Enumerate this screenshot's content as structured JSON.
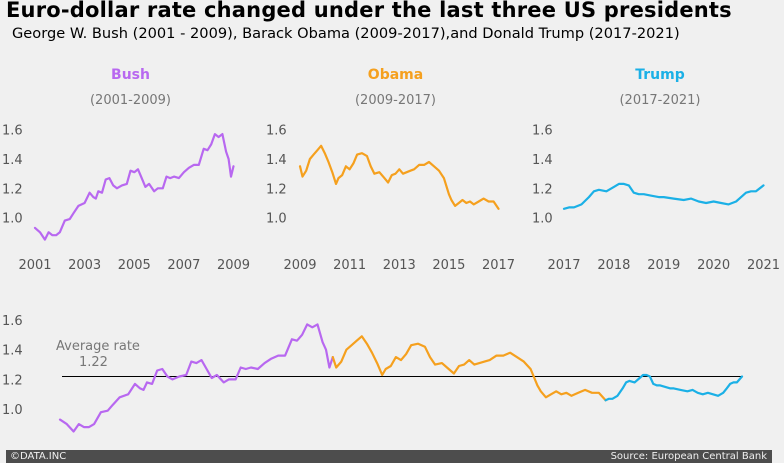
{
  "header": {
    "title": "Euro-dollar rate changed under the last three US presidents",
    "subtitle": "George W. Bush (2001 - 2009), Barack Obama (2009-2017),and Donald Trump (2017-2021)"
  },
  "footer": {
    "left": "©DATA.INC",
    "right": "Source: European Central Bank"
  },
  "chart_data": [
    {
      "type": "line",
      "title": "Bush",
      "subtitle": "(2001-2009)",
      "color": "#b868f0",
      "xlim": [
        2001,
        2009.1
      ],
      "ylim": [
        0.82,
        1.68
      ],
      "xticks": [
        "2001",
        "2003",
        "2005",
        "2007",
        "2009"
      ],
      "yticks": [
        "1.0",
        "1.2",
        "1.4",
        "1.6"
      ],
      "series": [
        {
          "x": [
            2001.0,
            2001.2,
            2001.4,
            2001.55,
            2001.7,
            2001.85,
            2002.0,
            2002.2,
            2002.4,
            2002.55,
            2002.75,
            2003.0,
            2003.2,
            2003.35,
            2003.45,
            2003.55,
            2003.7,
            2003.85,
            2004.0,
            2004.15,
            2004.3,
            2004.5,
            2004.7,
            2004.85,
            2005.0,
            2005.15,
            2005.3,
            2005.45,
            2005.6,
            2005.8,
            2005.95,
            2006.15,
            2006.3,
            2006.45,
            2006.6,
            2006.8,
            2007.0,
            2007.2,
            2007.4,
            2007.6,
            2007.8,
            2007.95,
            2008.1,
            2008.25,
            2008.4,
            2008.55,
            2008.7,
            2008.8,
            2008.9,
            2009.0
          ],
          "y": [
            0.93,
            0.9,
            0.85,
            0.9,
            0.88,
            0.88,
            0.9,
            0.98,
            0.99,
            1.03,
            1.08,
            1.1,
            1.17,
            1.14,
            1.13,
            1.18,
            1.17,
            1.26,
            1.27,
            1.22,
            1.2,
            1.22,
            1.23,
            1.32,
            1.31,
            1.33,
            1.27,
            1.21,
            1.23,
            1.18,
            1.2,
            1.2,
            1.28,
            1.27,
            1.28,
            1.27,
            1.31,
            1.34,
            1.36,
            1.36,
            1.47,
            1.46,
            1.5,
            1.57,
            1.55,
            1.57,
            1.45,
            1.4,
            1.28,
            1.35
          ]
        }
      ]
    },
    {
      "type": "line",
      "title": "Obama",
      "subtitle": "(2009-2017)",
      "color": "#f5a01e",
      "xlim": [
        2009,
        2017.1
      ],
      "ylim": [
        0.82,
        1.68
      ],
      "xticks": [
        "2009",
        "2011",
        "2013",
        "2015",
        "2017"
      ],
      "yticks": [
        "1.0",
        "1.2",
        "1.4",
        "1.6"
      ],
      "series": [
        {
          "x": [
            2009.0,
            2009.1,
            2009.25,
            2009.4,
            2009.55,
            2009.7,
            2009.85,
            2010.0,
            2010.15,
            2010.3,
            2010.45,
            2010.55,
            2010.7,
            2010.85,
            2011.0,
            2011.15,
            2011.3,
            2011.5,
            2011.7,
            2011.85,
            2012.0,
            2012.2,
            2012.4,
            2012.55,
            2012.7,
            2012.85,
            2013.0,
            2013.15,
            2013.3,
            2013.45,
            2013.6,
            2013.8,
            2014.0,
            2014.2,
            2014.4,
            2014.6,
            2014.8,
            2015.0,
            2015.1,
            2015.25,
            2015.4,
            2015.55,
            2015.7,
            2015.85,
            2016.0,
            2016.2,
            2016.4,
            2016.6,
            2016.8,
            2017.0
          ],
          "y": [
            1.35,
            1.28,
            1.32,
            1.4,
            1.43,
            1.46,
            1.49,
            1.44,
            1.38,
            1.31,
            1.23,
            1.27,
            1.29,
            1.35,
            1.33,
            1.37,
            1.43,
            1.44,
            1.42,
            1.35,
            1.3,
            1.31,
            1.27,
            1.24,
            1.29,
            1.3,
            1.33,
            1.3,
            1.31,
            1.32,
            1.33,
            1.36,
            1.36,
            1.38,
            1.35,
            1.32,
            1.27,
            1.16,
            1.12,
            1.08,
            1.1,
            1.12,
            1.1,
            1.11,
            1.09,
            1.11,
            1.13,
            1.11,
            1.11,
            1.06
          ]
        }
      ]
    },
    {
      "type": "line",
      "title": "Trump",
      "subtitle": "(2017-2021)",
      "color": "#1bb0e6",
      "xlim": [
        2017,
        2021.05
      ],
      "ylim": [
        0.82,
        1.68
      ],
      "xticks": [
        "2017",
        "2018",
        "2019",
        "2020",
        "2021"
      ],
      "yticks": [
        "1.0",
        "1.2",
        "1.4",
        "1.6"
      ],
      "series": [
        {
          "x": [
            2017.0,
            2017.1,
            2017.2,
            2017.35,
            2017.5,
            2017.6,
            2017.7,
            2017.85,
            2018.0,
            2018.1,
            2018.2,
            2018.3,
            2018.4,
            2018.5,
            2018.6,
            2018.75,
            2018.9,
            2019.0,
            2019.2,
            2019.4,
            2019.55,
            2019.7,
            2019.85,
            2020.0,
            2020.15,
            2020.3,
            2020.45,
            2020.55,
            2020.65,
            2020.75,
            2020.85,
            2021.0
          ],
          "y": [
            1.06,
            1.07,
            1.07,
            1.09,
            1.14,
            1.18,
            1.19,
            1.18,
            1.21,
            1.23,
            1.23,
            1.22,
            1.17,
            1.16,
            1.16,
            1.15,
            1.14,
            1.14,
            1.13,
            1.12,
            1.13,
            1.11,
            1.1,
            1.11,
            1.1,
            1.09,
            1.11,
            1.14,
            1.17,
            1.18,
            1.18,
            1.22
          ]
        }
      ]
    },
    {
      "type": "line",
      "ylim": [
        0.82,
        1.68
      ],
      "yticks": [
        "1.0",
        "1.2",
        "1.4",
        "1.6"
      ],
      "average_label": "Average rate",
      "average_value": 1.22,
      "average_value_text": "1.22",
      "series": [
        {
          "ref": "Bush",
          "color": "#b868f0"
        },
        {
          "ref": "Obama",
          "color": "#f5a01e"
        },
        {
          "ref": "Trump",
          "color": "#1bb0e6"
        }
      ]
    }
  ]
}
